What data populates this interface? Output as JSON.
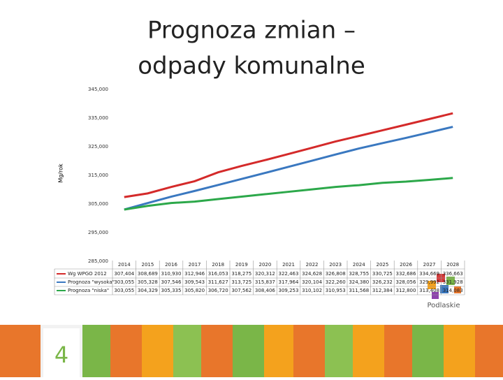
{
  "chart_data": {
    "type": "line",
    "title": [
      "Prognoza zmian –",
      "odpady komunalne"
    ],
    "y_label": "Mg/rok",
    "categories": [
      "2014",
      "2015",
      "2016",
      "2017",
      "2018",
      "2019",
      "2020",
      "2021",
      "2022",
      "2023",
      "2024",
      "2025",
      "2026",
      "2027",
      "2028"
    ],
    "series": [
      {
        "name": "Wg WPGO 2012",
        "color": "#d42a2a",
        "values": [
          307404,
          308689,
          310930,
          312946,
          316053,
          318275,
          320312,
          322463,
          324628,
          326808,
          328755,
          330725,
          332686,
          334669,
          336663
        ],
        "value_labels": [
          "307,404",
          "308,689",
          "310,930",
          "312,946",
          "316,053",
          "318,275",
          "320,312",
          "322,463",
          "324,628",
          "326,808",
          "328,755",
          "330,725",
          "332,686",
          "334,669",
          "336,663"
        ]
      },
      {
        "name": "Prognoza \"wysoka\"",
        "color": "#3a78c0",
        "values": [
          303055,
          305328,
          307546,
          309543,
          311627,
          313725,
          315837,
          317964,
          320104,
          322260,
          324380,
          326232,
          328056,
          329992,
          331928
        ],
        "value_labels": [
          "303,055",
          "305,328",
          "307,546",
          "309,543",
          "311,627",
          "313,725",
          "315,837",
          "317,964",
          "320,104",
          "322,260",
          "324,380",
          "326,232",
          "328,056",
          "329,992",
          "331,928"
        ]
      },
      {
        "name": "Prognoza \"niska\"",
        "color": "#2ca84a",
        "values": [
          303055,
          304329,
          305335,
          305820,
          306720,
          307562,
          308406,
          309253,
          310102,
          310953,
          311568,
          312384,
          312800,
          313408,
          314083
        ],
        "value_labels": [
          "303,055",
          "304,329",
          "305,335",
          "305,820",
          "306,720",
          "307,562",
          "308,406",
          "309,253",
          "310,102",
          "310,953",
          "311,568",
          "312,384",
          "312,800",
          "313,408",
          "314,083"
        ]
      }
    ],
    "ylim": [
      285000,
      345000
    ],
    "yticks": [
      {
        "value": 285000,
        "label": "285,000"
      },
      {
        "value": 295000,
        "label": "295,000"
      },
      {
        "value": 305000,
        "label": "305,000"
      },
      {
        "value": 315000,
        "label": "315,000"
      },
      {
        "value": 325000,
        "label": "325,000"
      },
      {
        "value": 335000,
        "label": "335,000"
      },
      {
        "value": 345000,
        "label": "345,000"
      }
    ],
    "grid": false
  },
  "slide_number": "4",
  "logo_text": "Podlaskie"
}
